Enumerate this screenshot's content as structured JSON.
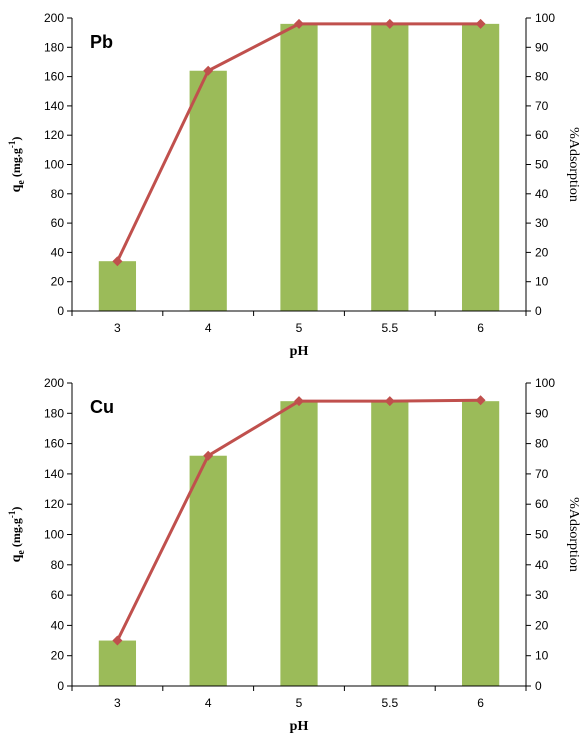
{
  "chart_data": [
    {
      "type": "bar",
      "panel_label": "Pb",
      "categories": [
        "3",
        "4",
        "5",
        "5.5",
        "6"
      ],
      "series": [
        {
          "axis": "left",
          "type": "bar",
          "values": [
            34,
            164,
            196,
            196,
            196
          ],
          "color": "#9BBB59"
        },
        {
          "axis": "right",
          "type": "line",
          "values": [
            17,
            82,
            98,
            98,
            98
          ],
          "color": "#C0504D"
        }
      ],
      "xlabel": "pH",
      "ylabel": {
        "main": "q",
        "sub": "e",
        "rest": " (mg.g",
        "sup": "-1",
        "end": ")"
      },
      "y2label": "%Adsorption",
      "ylim": [
        0,
        200
      ],
      "y_ticks": [
        0,
        20,
        40,
        60,
        80,
        100,
        120,
        140,
        160,
        180,
        200
      ],
      "y2lim": [
        0,
        100
      ],
      "y2_ticks": [
        0,
        10,
        20,
        30,
        40,
        50,
        60,
        70,
        80,
        90,
        100
      ]
    },
    {
      "type": "bar",
      "panel_label": "Cu",
      "categories": [
        "3",
        "4",
        "5",
        "5.5",
        "6"
      ],
      "series": [
        {
          "axis": "left",
          "type": "bar",
          "values": [
            30,
            152,
            188,
            188,
            188
          ],
          "color": "#9BBB59"
        },
        {
          "axis": "right",
          "type": "line",
          "values": [
            15,
            76,
            94,
            94,
            94.3
          ],
          "color": "#C0504D"
        }
      ],
      "xlabel": "pH",
      "ylabel": {
        "main": "q",
        "sub": "e",
        "rest": " (mg.g",
        "sup": "-1",
        "end": ")"
      },
      "y2label": "%Adsorption",
      "ylim": [
        0,
        200
      ],
      "y_ticks": [
        0,
        20,
        40,
        60,
        80,
        100,
        120,
        140,
        160,
        180,
        200
      ],
      "y2lim": [
        0,
        100
      ],
      "y2_ticks": [
        0,
        10,
        20,
        30,
        40,
        50,
        60,
        70,
        80,
        90,
        100
      ]
    }
  ]
}
